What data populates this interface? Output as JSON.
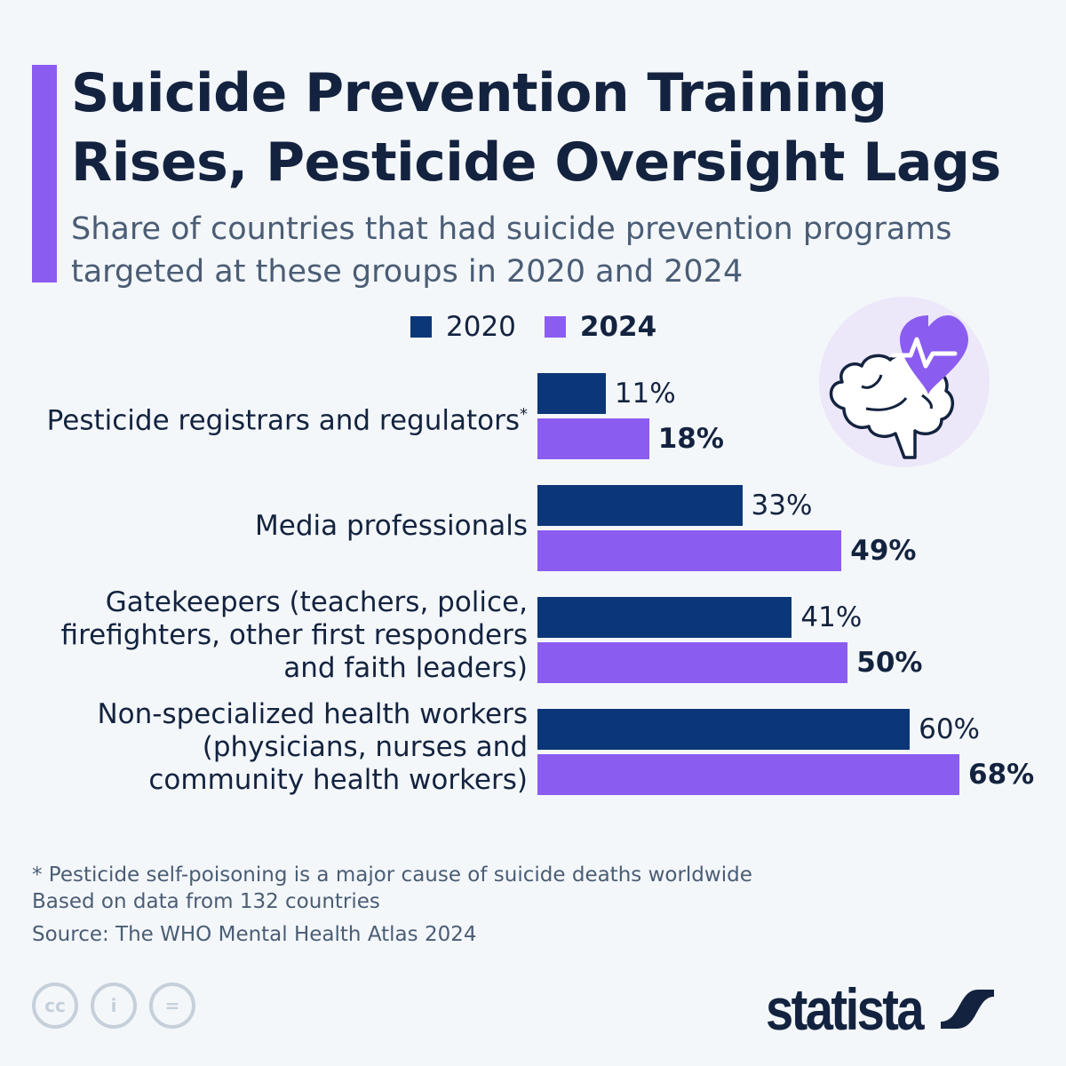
{
  "title_lines": [
    "Suicide Prevention Training",
    "Rises, Pesticide Oversight Lags"
  ],
  "subtitle": "Share of countries that had suicide prevention programs targeted at these groups in 2020 and 2024",
  "colors": {
    "accent": "#8b5cf0",
    "series_2020": "#0b3678",
    "series_2024": "#8b5cf0",
    "text": "#13233f",
    "background": "#f4f7fa"
  },
  "chart_data": {
    "type": "bar",
    "orientation": "horizontal",
    "categories": [
      "Pesticide registrars and regulators",
      "Media professionals",
      "Gatekeepers (teachers, police,\nfirefighters, other first responders\nand faith leaders)",
      "Non-specialized health workers\n(physicians, nurses and\ncommunity health workers)"
    ],
    "category_markers": [
      "*",
      "",
      "",
      ""
    ],
    "series": [
      {
        "name": "2020",
        "values": [
          11,
          33,
          41,
          60
        ],
        "labels": [
          "11%",
          "33%",
          "41%",
          "60%"
        ]
      },
      {
        "name": "2024",
        "values": [
          18,
          49,
          50,
          68
        ],
        "labels": [
          "18%",
          "49%",
          "50%",
          "68%"
        ]
      }
    ],
    "unit": "%",
    "xlim": [
      0,
      100
    ],
    "grid": false,
    "legend": "top"
  },
  "footnotes": [
    "* Pesticide self-poisoning is a major cause of suicide deaths worldwide",
    "Based on data from 132 countries"
  ],
  "source": "Source: The WHO Mental Health Atlas 2024",
  "icon": "brain-heart-icon",
  "license_icons": [
    "cc",
    "by",
    "nd"
  ],
  "license_labels": [
    "cc",
    "i",
    "="
  ],
  "brand": "statista"
}
